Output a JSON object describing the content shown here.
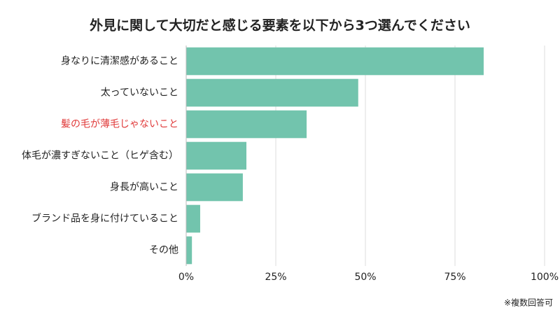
{
  "chart_data": {
    "type": "hbar",
    "title": "外見に関して大切だと感じる要素を以下から3つ選んでください",
    "categories": [
      "身なりに清潔感があること",
      "太っていないこと",
      "髪の毛が薄毛じゃないこと",
      "体毛が濃すぎないこと（ヒゲ含む）",
      "身長が高いこと",
      "ブランド品を身に付けていること",
      "その他"
    ],
    "values": [
      83,
      48,
      33.6,
      16.8,
      15.8,
      3.9,
      1.6
    ],
    "color": "#72c4ad",
    "highlight_index": 2,
    "highlight_color": "#e03a3a",
    "xlim": [
      0,
      100
    ],
    "xticks": [
      {
        "value": 0,
        "label": "0%"
      },
      {
        "value": 25,
        "label": "25%"
      },
      {
        "value": 50,
        "label": "50%"
      },
      {
        "value": 75,
        "label": "75%"
      },
      {
        "value": 100,
        "label": "100%"
      }
    ],
    "grid": true,
    "note": "※複数回答可"
  }
}
